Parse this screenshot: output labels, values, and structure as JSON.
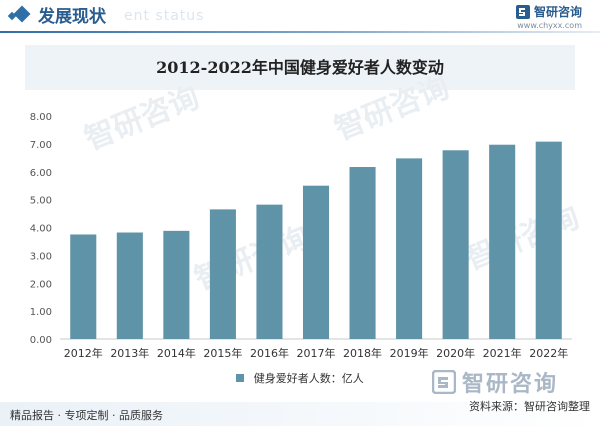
{
  "header": {
    "title": "发展现状",
    "subtitle_en": "ent status",
    "brand_name": "智研咨询",
    "brand_url": "www.chyxx.com"
  },
  "watermark": {
    "text": "智研咨询"
  },
  "chart_data": {
    "type": "bar",
    "title": "2012-2022年中国健身爱好者人数变动",
    "categories": [
      "2012年",
      "2013年",
      "2014年",
      "2015年",
      "2016年",
      "2017年",
      "2018年",
      "2019年",
      "2020年",
      "2021年",
      "2022年"
    ],
    "series": [
      {
        "name": "健身爱好者人数：亿人",
        "values": [
          3.75,
          3.82,
          3.88,
          4.65,
          4.82,
          5.5,
          6.17,
          6.48,
          6.77,
          6.97,
          7.08
        ],
        "color": "#5f93a8"
      }
    ],
    "yticks": [
      "0.00",
      "1.00",
      "2.00",
      "3.00",
      "4.00",
      "5.00",
      "6.00",
      "7.00",
      "8.00"
    ],
    "ylim": [
      0,
      8
    ],
    "grid": false,
    "legend": "bottom-center"
  },
  "footer": {
    "left_text": "精品报告 · 专项定制 · 品质服务",
    "source_text": "资料来源：智研咨询整理"
  }
}
